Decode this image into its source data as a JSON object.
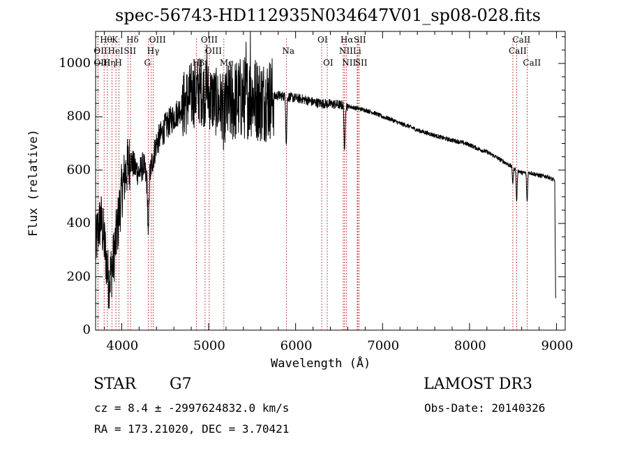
{
  "chart_data": {
    "type": "line",
    "title": "spec-56743-HD112935N034647V01_sp08-028.fits",
    "xlabel": "Wavelength (Å)",
    "ylabel": "Flux (relative)",
    "xlim": [
      3700,
      9100
    ],
    "ylim": [
      0,
      1120
    ],
    "x_ticks": [
      4000,
      5000,
      6000,
      7000,
      8000,
      9000
    ],
    "y_ticks": [
      0,
      200,
      400,
      600,
      800,
      1000
    ],
    "grid": false,
    "line_color": "#000000",
    "marker_color": "#b22222",
    "lines": [
      {
        "text": "Hθ",
        "x": 3798,
        "row": 0
      },
      {
        "text": "OII",
        "x": 3727,
        "row": 1
      },
      {
        "text": "OIII",
        "x": 3727,
        "row": 2
      },
      {
        "text": "Hη",
        "x": 3835,
        "row": 2
      },
      {
        "text": "K",
        "x": 3934,
        "row": 0
      },
      {
        "text": "HeI",
        "x": 3889,
        "row": 1
      },
      {
        "text": "H",
        "x": 3969,
        "row": 2
      },
      {
        "text": "Hδ",
        "x": 4102,
        "row": 0
      },
      {
        "text": "SII",
        "x": 4072,
        "row": 1
      },
      {
        "text": "OIII",
        "x": 4363,
        "row": 0
      },
      {
        "text": "Hγ",
        "x": 4340,
        "row": 1
      },
      {
        "text": "G",
        "x": 4306,
        "row": 2
      },
      {
        "text": "Hβ",
        "x": 4861,
        "row": 2
      },
      {
        "text": "OIII",
        "x": 4959,
        "row": 0
      },
      {
        "text": "OIII",
        "x": 5007,
        "row": 1
      },
      {
        "text": "Mg",
        "x": 5175,
        "row": 2
      },
      {
        "text": "Na",
        "x": 5893,
        "row": 1
      },
      {
        "text": "OI",
        "x": 6300,
        "row": 0
      },
      {
        "text": "OI",
        "x": 6364,
        "row": 2
      },
      {
        "text": "Hα",
        "x": 6563,
        "row": 0
      },
      {
        "text": "NII",
        "x": 6548,
        "row": 1
      },
      {
        "text": "NII",
        "x": 6583,
        "row": 2
      },
      {
        "text": "SII",
        "x": 6716,
        "row": 0
      },
      {
        "text": "Li",
        "x": 6708,
        "row": 1
      },
      {
        "text": "SII",
        "x": 6731,
        "row": 2
      },
      {
        "text": "CaII",
        "x": 8542,
        "row": 0
      },
      {
        "text": "CaII",
        "x": 8498,
        "row": 1
      },
      {
        "text": "CaII",
        "x": 8662,
        "row": 2
      }
    ],
    "continuum": [
      [
        3700,
        300
      ],
      [
        3720,
        360
      ],
      [
        3760,
        420
      ],
      [
        3800,
        330
      ],
      [
        3850,
        180
      ],
      [
        3900,
        250
      ],
      [
        3950,
        380
      ],
      [
        4000,
        520
      ],
      [
        4050,
        600
      ],
      [
        4100,
        640
      ],
      [
        4150,
        610
      ],
      [
        4200,
        590
      ],
      [
        4250,
        620
      ],
      [
        4300,
        540
      ],
      [
        4350,
        630
      ],
      [
        4400,
        700
      ],
      [
        4500,
        760
      ],
      [
        4600,
        800
      ],
      [
        4700,
        840
      ],
      [
        4800,
        880
      ],
      [
        4900,
        900
      ],
      [
        5000,
        880
      ],
      [
        5100,
        850
      ],
      [
        5200,
        840
      ],
      [
        5300,
        860
      ],
      [
        5400,
        870
      ],
      [
        5500,
        880
      ],
      [
        5600,
        860
      ],
      [
        5700,
        870
      ],
      [
        5800,
        880
      ],
      [
        5900,
        875
      ],
      [
        6000,
        870
      ],
      [
        6100,
        865
      ],
      [
        6200,
        855
      ],
      [
        6300,
        850
      ],
      [
        6400,
        848
      ],
      [
        6500,
        845
      ],
      [
        6600,
        840
      ],
      [
        6700,
        832
      ],
      [
        6800,
        825
      ],
      [
        6900,
        815
      ],
      [
        7000,
        800
      ],
      [
        7100,
        790
      ],
      [
        7200,
        775
      ],
      [
        7300,
        765
      ],
      [
        7400,
        750
      ],
      [
        7500,
        740
      ],
      [
        7600,
        730
      ],
      [
        7700,
        720
      ],
      [
        7800,
        712
      ],
      [
        7900,
        705
      ],
      [
        8000,
        695
      ],
      [
        8100,
        680
      ],
      [
        8200,
        668
      ],
      [
        8300,
        650
      ],
      [
        8400,
        630
      ],
      [
        8500,
        610
      ],
      [
        8600,
        590
      ],
      [
        8700,
        590
      ],
      [
        8800,
        580
      ],
      [
        8900,
        575
      ],
      [
        8980,
        560
      ]
    ],
    "noise_regions": [
      {
        "x_from": 3700,
        "x_to": 4100,
        "amp": 110
      },
      {
        "x_from": 4100,
        "x_to": 4700,
        "amp": 55
      },
      {
        "x_from": 4700,
        "x_to": 5200,
        "amp": 130
      },
      {
        "x_from": 5200,
        "x_to": 5750,
        "amp": 160
      },
      {
        "x_from": 5750,
        "x_to": 6600,
        "amp": 18
      },
      {
        "x_from": 6600,
        "x_to": 9000,
        "amp": 8
      }
    ],
    "absorption": [
      {
        "x": 4306,
        "depth": 220
      },
      {
        "x": 5175,
        "depth": 120
      },
      {
        "x": 5893,
        "depth": 180
      },
      {
        "x": 6563,
        "depth": 180
      },
      {
        "x": 8498,
        "depth": 60
      },
      {
        "x": 8542,
        "depth": 120
      },
      {
        "x": 8662,
        "depth": 110
      }
    ],
    "spikes": [
      {
        "x": 5480,
        "value": 1130
      },
      {
        "x": 5430,
        "value": 1080
      },
      {
        "x": 4980,
        "value": 1070
      }
    ]
  },
  "footer": {
    "class_label": "STAR",
    "subclass": "G7",
    "survey": "LAMOST DR3",
    "velocity": "cz = 8.4 ± -2997624832.0 km/s",
    "obs_date": "Obs-Date: 20140326",
    "coords": "RA = 173.21020, DEC =   3.70421"
  }
}
